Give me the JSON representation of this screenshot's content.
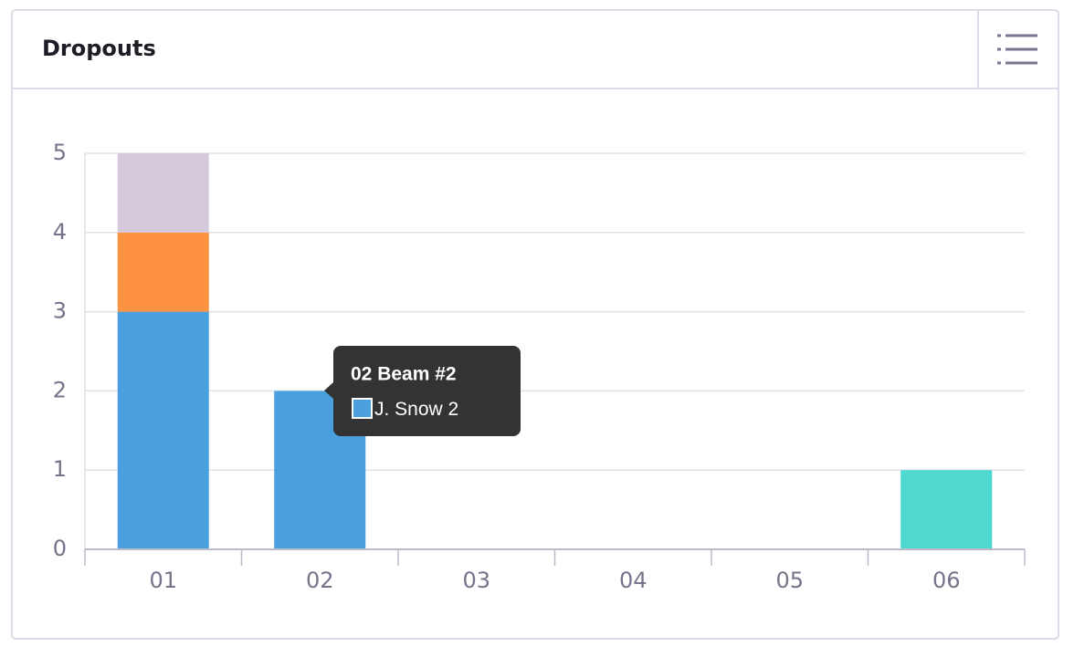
{
  "chart_data": {
    "type": "stacked_bar",
    "title": "Dropouts",
    "categories": [
      "01",
      "02",
      "03",
      "04",
      "05",
      "06"
    ],
    "series": [
      {
        "name": "J. Snow",
        "color": "#4aa0df",
        "values": [
          3,
          2,
          0,
          0,
          0,
          0
        ]
      },
      {
        "color": "#fd9241",
        "values": [
          1,
          0,
          0,
          0,
          0,
          0
        ]
      },
      {
        "color": "#d5cadb",
        "values": [
          1,
          0,
          0,
          0,
          0,
          0
        ]
      },
      {
        "color": "#4ed8d0",
        "values": [
          0,
          0,
          0,
          0,
          0,
          1
        ]
      }
    ],
    "ylim": [
      0,
      5
    ],
    "yticks": [
      0,
      1,
      2,
      3,
      4,
      5
    ],
    "grid": true,
    "tooltip": {
      "title": "02 Beam #2"
    }
  }
}
